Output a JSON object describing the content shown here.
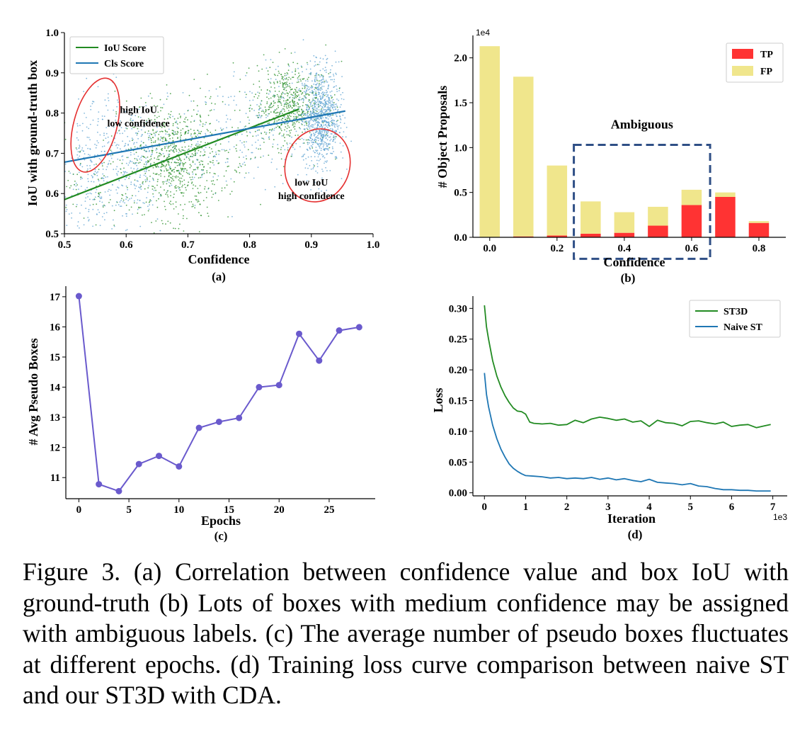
{
  "caption": "Figure 3. (a) Correlation between confidence value and box IoU with ground-truth (b) Lots of boxes with medium confidence may be assigned with ambiguous labels. (c) The average number of pseudo boxes fluctuates at different epochs. (d) Training loss curve comparison between naive ST and our ST3D with CDA.",
  "chart_data": [
    {
      "id": "a",
      "type": "scatter",
      "sublabel": "(a)",
      "xlabel": "Confidence",
      "ylabel": "IoU with ground-truth box",
      "xlim": [
        0.5,
        1.0
      ],
      "ylim": [
        0.5,
        1.0
      ],
      "xticks": [
        "0.5",
        "0.6",
        "0.7",
        "0.8",
        "0.9",
        "1.0"
      ],
      "yticks": [
        "0.5",
        "0.6",
        "0.7",
        "0.8",
        "0.9",
        "1.0"
      ],
      "legend_position": "top-left",
      "series": [
        {
          "name": "IoU Score",
          "color": "#228B22",
          "fit": [
            [
              0.5,
              0.585
            ],
            [
              0.88,
              0.81
            ]
          ]
        },
        {
          "name": "Cls Score",
          "color": "#1f77b4",
          "fit": [
            [
              0.5,
              0.678
            ],
            [
              0.955,
              0.805
            ]
          ]
        }
      ],
      "annotations": [
        {
          "lines": [
            "high IoU",
            "low confidence"
          ],
          "x": 0.62,
          "y": 0.8
        },
        {
          "lines": [
            "low IoU",
            "high confidence"
          ],
          "x": 0.9,
          "y": 0.62
        }
      ],
      "ellipses": [
        {
          "cx": 0.55,
          "cy": 0.77,
          "rx": 0.035,
          "ry": 0.12,
          "rot": 15,
          "color": "#e53030"
        },
        {
          "cx": 0.91,
          "cy": 0.67,
          "rx": 0.052,
          "ry": 0.092,
          "rot": 20,
          "color": "#e53030"
        }
      ]
    },
    {
      "id": "b",
      "type": "bar",
      "sublabel": "(b)",
      "xlabel": "Confidence",
      "ylabel": "# Object Proposals",
      "multiplier": "1e4",
      "xlim": [
        -0.05,
        0.88
      ],
      "ylim": [
        0,
        2.25
      ],
      "xticks": [
        "0.0",
        "0.2",
        "0.4",
        "0.6",
        "0.8"
      ],
      "yticks": [
        "0.0",
        "0.5",
        "1.0",
        "1.5",
        "2.0"
      ],
      "legend_position": "top-right",
      "x": [
        0.0,
        0.1,
        0.2,
        0.3,
        0.4,
        0.5,
        0.6,
        0.7,
        0.8
      ],
      "series": [
        {
          "name": "TP",
          "color": "#ff3333",
          "values": [
            0.0,
            0.01,
            0.02,
            0.04,
            0.05,
            0.13,
            0.36,
            0.45,
            0.16
          ]
        },
        {
          "name": "FP",
          "color": "#f0e68c",
          "values": [
            2.13,
            1.78,
            0.78,
            0.36,
            0.23,
            0.21,
            0.17,
            0.05,
            0.02
          ]
        }
      ],
      "highlight": {
        "label": "Ambiguous",
        "x0": 0.25,
        "x1": 0.655,
        "y0": -0.24,
        "y1": 1.03,
        "color": "#2f4f86"
      }
    },
    {
      "id": "c",
      "type": "line",
      "sublabel": "(c)",
      "xlabel": "Epochs",
      "ylabel": "# Avg Pseudo Boxes",
      "xlim": [
        -1.3,
        29.6
      ],
      "ylim": [
        10.3,
        17.35
      ],
      "xticks": [
        "0",
        "5",
        "10",
        "15",
        "20",
        "25"
      ],
      "yticks": [
        "11",
        "12",
        "13",
        "14",
        "15",
        "16",
        "17"
      ],
      "series": [
        {
          "name": "",
          "color": "#6a5acd",
          "x": [
            0,
            2,
            4,
            6,
            8,
            10,
            12,
            14,
            16,
            18,
            20,
            22,
            24,
            26,
            28
          ],
          "y": [
            17.02,
            10.78,
            10.55,
            11.45,
            11.72,
            11.37,
            12.65,
            12.85,
            12.98,
            14.0,
            14.07,
            15.77,
            14.88,
            15.88,
            15.99
          ]
        }
      ]
    },
    {
      "id": "d",
      "type": "line",
      "sublabel": "(d)",
      "xlabel": "Iteration",
      "ylabel": "Loss",
      "multiplier": "1e3",
      "xlim": [
        -0.28,
        7.35
      ],
      "ylim": [
        -0.005,
        0.32
      ],
      "xticks": [
        "0",
        "1",
        "2",
        "3",
        "4",
        "5",
        "6",
        "7"
      ],
      "yticks": [
        "0.00",
        "0.05",
        "0.10",
        "0.15",
        "0.20",
        "0.25",
        "0.30"
      ],
      "legend_position": "top-right",
      "series": [
        {
          "name": "ST3D",
          "color": "#228B22",
          "x": [
            0,
            0.05,
            0.1,
            0.2,
            0.3,
            0.4,
            0.5,
            0.6,
            0.7,
            0.8,
            0.9,
            1.0,
            1.1,
            1.2,
            1.4,
            1.6,
            1.8,
            2.0,
            2.2,
            2.4,
            2.6,
            2.8,
            3.0,
            3.2,
            3.4,
            3.6,
            3.8,
            4.0,
            4.2,
            4.4,
            4.6,
            4.8,
            5.0,
            5.2,
            5.4,
            5.6,
            5.8,
            6.0,
            6.2,
            6.4,
            6.6,
            6.8,
            6.95
          ],
          "y": [
            0.305,
            0.27,
            0.25,
            0.215,
            0.19,
            0.172,
            0.158,
            0.147,
            0.138,
            0.133,
            0.132,
            0.128,
            0.115,
            0.113,
            0.112,
            0.113,
            0.11,
            0.111,
            0.118,
            0.114,
            0.12,
            0.123,
            0.121,
            0.118,
            0.12,
            0.115,
            0.117,
            0.108,
            0.118,
            0.114,
            0.113,
            0.109,
            0.116,
            0.117,
            0.114,
            0.112,
            0.115,
            0.108,
            0.11,
            0.111,
            0.106,
            0.109,
            0.111
          ]
        },
        {
          "name": "Naive ST",
          "color": "#1f77b4",
          "x": [
            0,
            0.05,
            0.1,
            0.2,
            0.3,
            0.4,
            0.5,
            0.6,
            0.7,
            0.8,
            0.9,
            1.0,
            1.2,
            1.4,
            1.6,
            1.8,
            2.0,
            2.2,
            2.4,
            2.6,
            2.8,
            3.0,
            3.2,
            3.4,
            3.6,
            3.8,
            4.0,
            4.2,
            4.4,
            4.6,
            4.8,
            5.0,
            5.2,
            5.4,
            5.6,
            5.8,
            6.0,
            6.2,
            6.4,
            6.6,
            6.8,
            6.95
          ],
          "y": [
            0.195,
            0.16,
            0.14,
            0.11,
            0.088,
            0.071,
            0.058,
            0.047,
            0.04,
            0.035,
            0.031,
            0.028,
            0.027,
            0.026,
            0.024,
            0.025,
            0.023,
            0.024,
            0.023,
            0.025,
            0.022,
            0.024,
            0.021,
            0.023,
            0.02,
            0.018,
            0.022,
            0.017,
            0.016,
            0.015,
            0.013,
            0.015,
            0.011,
            0.01,
            0.007,
            0.005,
            0.005,
            0.004,
            0.004,
            0.003,
            0.003,
            0.003
          ]
        }
      ]
    }
  ]
}
